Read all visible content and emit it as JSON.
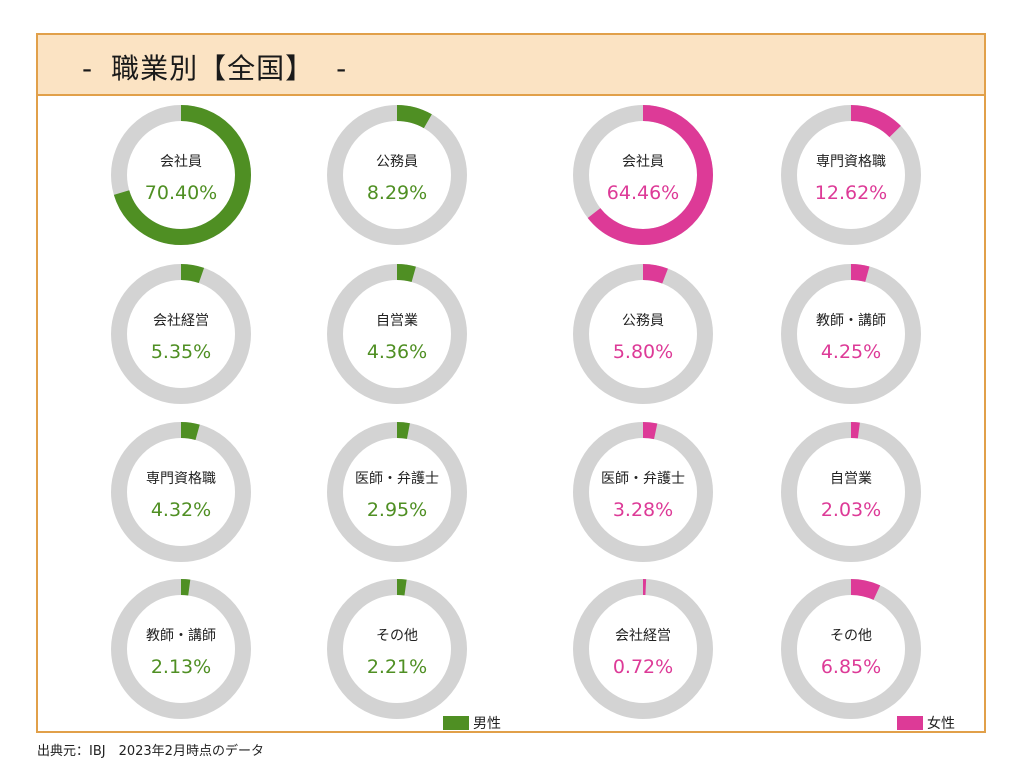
{
  "title": "職業別【全国】",
  "title_dash": "-",
  "colors": {
    "male": "#4f8f23",
    "female": "#dd3a97",
    "track": "#d3d3d3",
    "header_bg": "#fbe3c3",
    "border": "#e1a04a"
  },
  "chart_data": [
    {
      "type": "donut",
      "series": "男性",
      "unit": "%",
      "items": [
        {
          "label": "会社員",
          "value": 70.4,
          "text": "70.40%"
        },
        {
          "label": "公務員",
          "value": 8.29,
          "text": "8.29%"
        },
        {
          "label": "会社経営",
          "value": 5.35,
          "text": "5.35%"
        },
        {
          "label": "自営業",
          "value": 4.36,
          "text": "4.36%"
        },
        {
          "label": "専門資格職",
          "value": 4.32,
          "text": "4.32%"
        },
        {
          "label": "医師・弁護士",
          "value": 2.95,
          "text": "2.95%"
        },
        {
          "label": "教師・講師",
          "value": 2.13,
          "text": "2.13%"
        },
        {
          "label": "その他",
          "value": 2.21,
          "text": "2.21%"
        }
      ]
    },
    {
      "type": "donut",
      "series": "女性",
      "unit": "%",
      "items": [
        {
          "label": "会社員",
          "value": 64.46,
          "text": "64.46%"
        },
        {
          "label": "専門資格職",
          "value": 12.62,
          "text": "12.62%"
        },
        {
          "label": "公務員",
          "value": 5.8,
          "text": "5.80%"
        },
        {
          "label": "教師・講師",
          "value": 4.25,
          "text": "4.25%"
        },
        {
          "label": "医師・弁護士",
          "value": 3.28,
          "text": "3.28%"
        },
        {
          "label": "自営業",
          "value": 2.03,
          "text": "2.03%"
        },
        {
          "label": "会社経営",
          "value": 0.72,
          "text": "0.72%"
        },
        {
          "label": "その他",
          "value": 6.85,
          "text": "6.85%"
        }
      ]
    }
  ],
  "legend": {
    "male_label": "男性",
    "female_label": "女性"
  },
  "source": "出典元：IBJ　2023年2月時点のデータ"
}
